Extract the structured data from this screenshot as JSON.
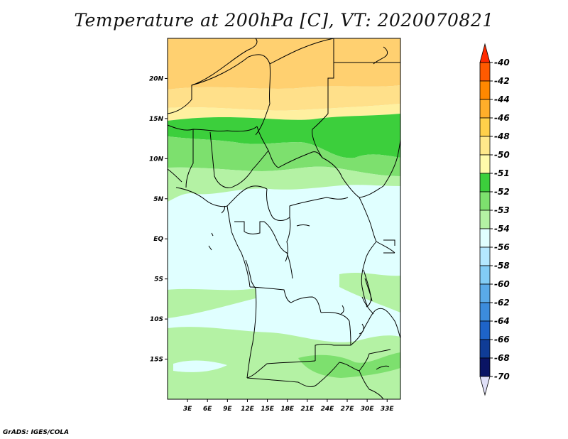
{
  "title": "Temperature at 200hPa [C], VT: 2020070821",
  "credit": "GrADS: IGES/COLA",
  "map": {
    "lon_range": [
      0,
      35
    ],
    "lat_range": [
      -20,
      25
    ],
    "lat_ticks": [
      "20N",
      "15N",
      "10N",
      "5N",
      "EQ",
      "5S",
      "10S",
      "15S"
    ],
    "lon_ticks": [
      "3E",
      "6E",
      "9E",
      "12E",
      "15E",
      "18E",
      "21E",
      "24E",
      "27E",
      "30E",
      "33E"
    ]
  },
  "colorbar": {
    "labels": [
      "-40",
      "-42",
      "-44",
      "-46",
      "-48",
      "-50",
      "-51",
      "-52",
      "-53",
      "-54",
      "-56",
      "-58",
      "-60",
      "-62",
      "-64",
      "-66",
      "-68",
      "-70"
    ],
    "colors": [
      "#ff2a00",
      "#ff5a00",
      "#ff8800",
      "#ffae2a",
      "#ffd04a",
      "#ffe88a",
      "#fffaaa",
      "#3ccf3c",
      "#7de06e",
      "#b4f2a4",
      "#e0ffff",
      "#b4e8ff",
      "#82ccf5",
      "#5aaae8",
      "#3c8cdc",
      "#1e64c8",
      "#0f3c96",
      "#0a1464",
      "#e0e0f8"
    ]
  },
  "fields": {
    "ocean": "#e0ffff",
    "bands": [
      "#fff0a0",
      "#ffe08a",
      "#ffd070",
      "#b4f2a4",
      "#7de06e",
      "#3ccf3c"
    ]
  }
}
